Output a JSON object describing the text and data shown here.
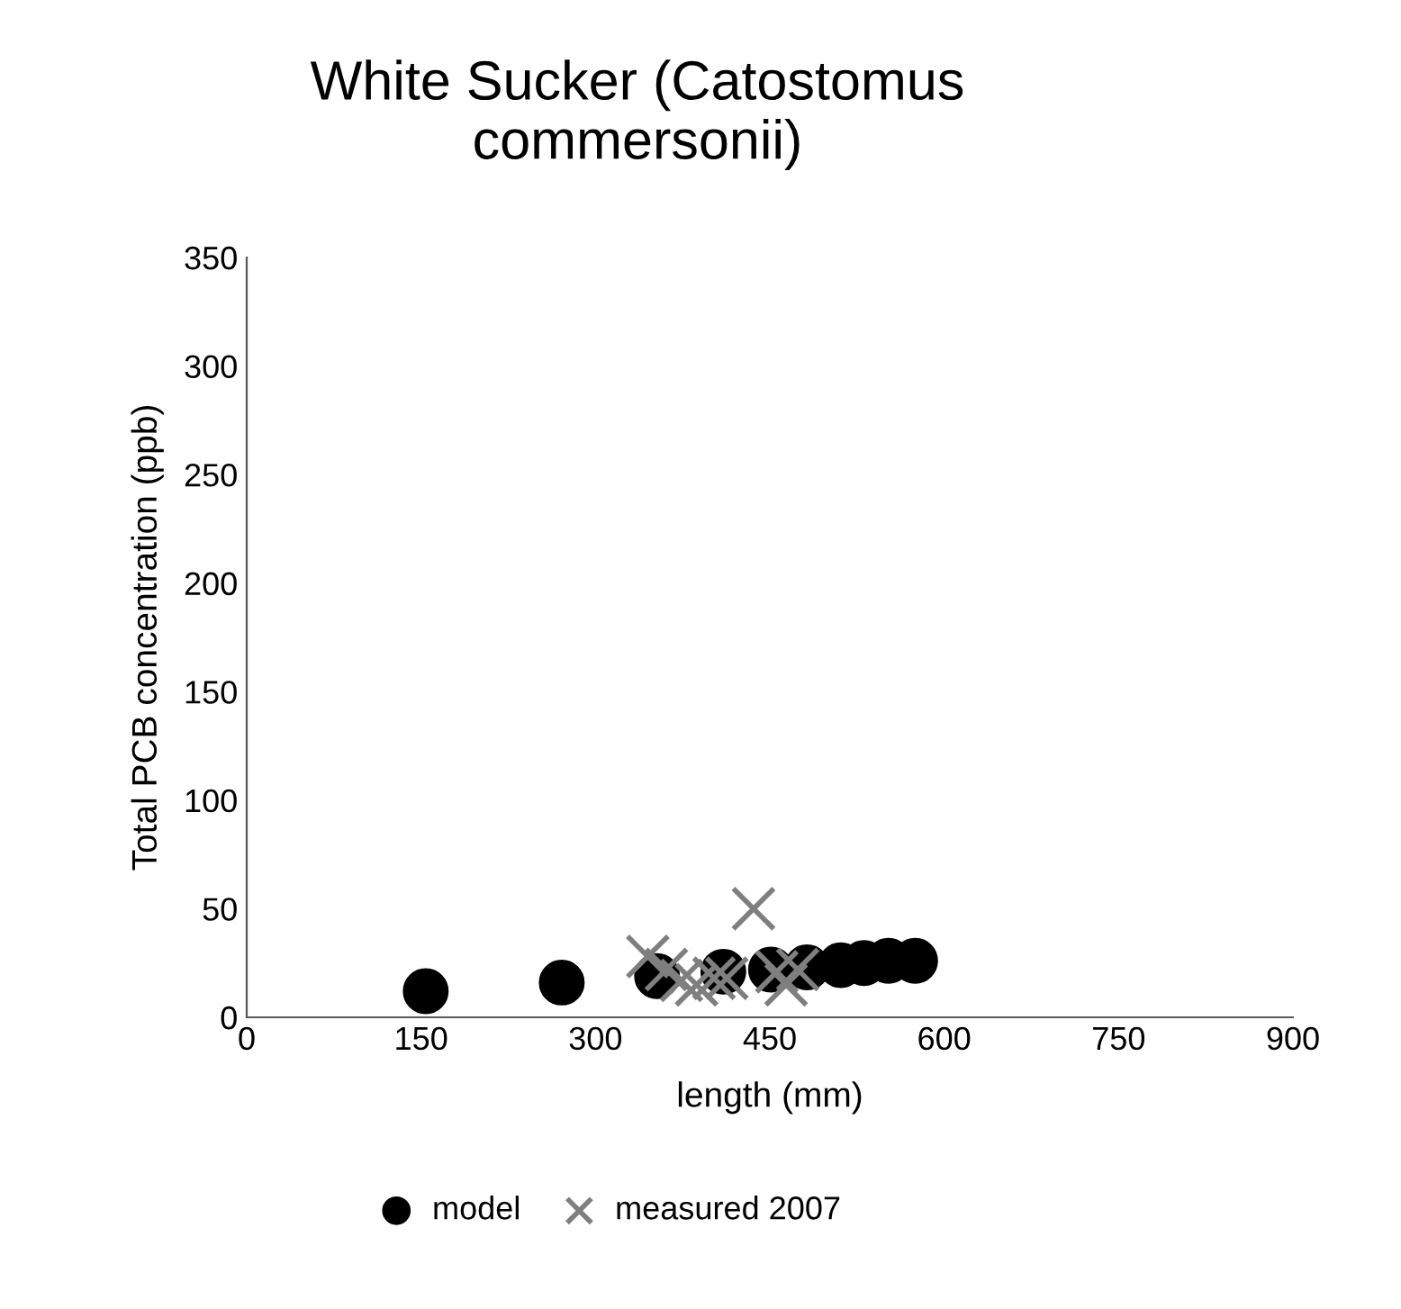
{
  "chart_data": {
    "type": "scatter",
    "title": "White Sucker (Catostomus\ncommersonii)",
    "xlabel": "length (mm)",
    "ylabel": "Total PCB concentration (ppb)",
    "xlim": [
      0,
      900
    ],
    "xticks": [
      0,
      150,
      300,
      450,
      600,
      750,
      900
    ],
    "ylim": [
      0,
      350
    ],
    "yticks": [
      0,
      50,
      100,
      150,
      200,
      250,
      300,
      350
    ],
    "grid": false,
    "legend": "bottom",
    "series": [
      {
        "name": "model",
        "color": "#000000",
        "marker": "circle",
        "x": [
          154,
          271,
          353,
          410,
          451,
          482,
          511,
          531,
          552,
          575
        ],
        "values": [
          12,
          16,
          19,
          21,
          22,
          23,
          24,
          25,
          26,
          26
        ]
      },
      {
        "name": "measured 2007",
        "color": "#7f7f7f",
        "marker": "cross",
        "x": [
          345,
          361,
          374,
          387,
          402,
          413,
          436,
          456,
          464,
          474
        ],
        "values": [
          28,
          22,
          17,
          15,
          18,
          18,
          50,
          21,
          15,
          22
        ]
      }
    ]
  }
}
